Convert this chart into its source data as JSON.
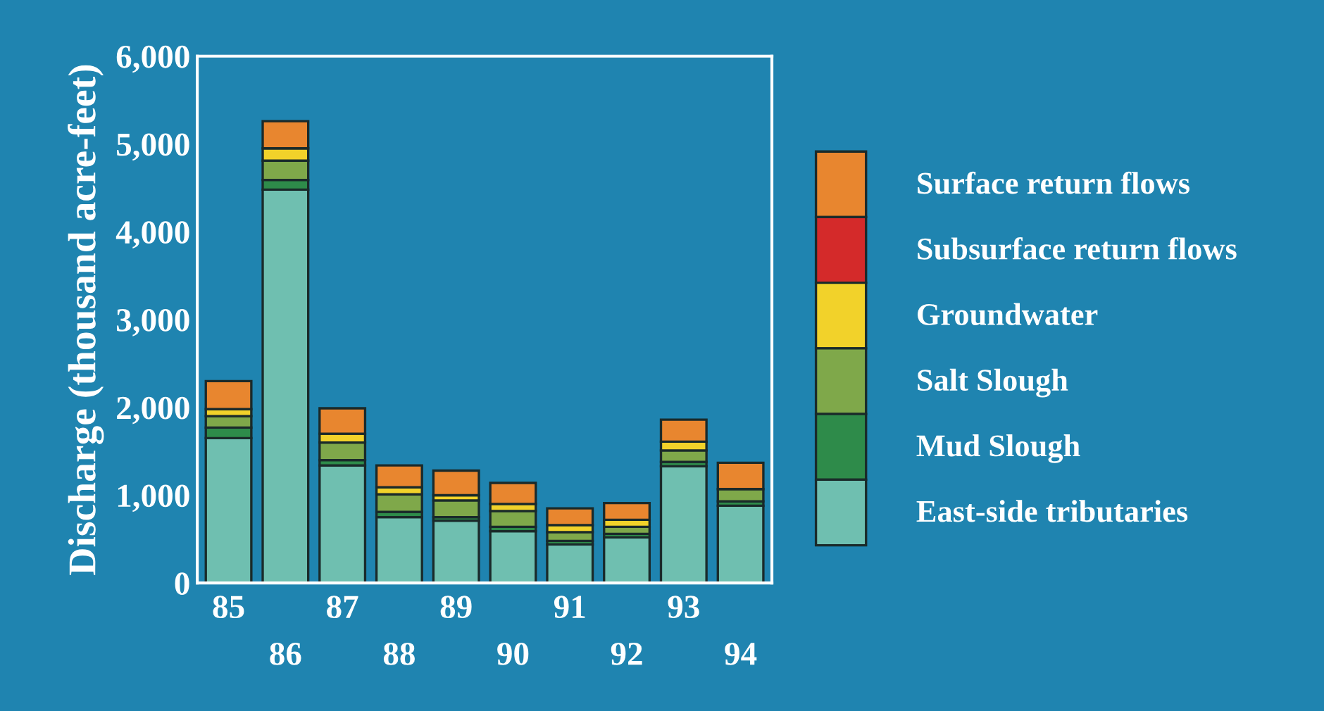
{
  "chart_data": {
    "type": "bar",
    "stacked": true,
    "ylabel": "Discharge (thousand acre-feet)",
    "categories": [
      "85",
      "86",
      "87",
      "88",
      "89",
      "90",
      "91",
      "92",
      "93",
      "94"
    ],
    "series": [
      {
        "name": "East-side tributaries",
        "color": "#6fbfb0",
        "values": [
          1650,
          4480,
          1340,
          750,
          710,
          590,
          440,
          520,
          1330,
          880
        ]
      },
      {
        "name": "Mud Slough",
        "color": "#2e8b4a",
        "values": [
          120,
          110,
          60,
          60,
          40,
          50,
          40,
          40,
          50,
          50
        ]
      },
      {
        "name": "Salt Slough",
        "color": "#7fa84a",
        "values": [
          130,
          220,
          200,
          200,
          190,
          180,
          100,
          80,
          130,
          140
        ]
      },
      {
        "name": "Groundwater",
        "color": "#f2d22a",
        "values": [
          80,
          140,
          100,
          80,
          60,
          80,
          80,
          80,
          100,
          null
        ]
      },
      {
        "name": "Subsurface return flows",
        "color": "#d42a2a",
        "values": [
          null,
          null,
          null,
          null,
          null,
          null,
          null,
          null,
          null,
          null
        ]
      },
      {
        "name": "Surface return flows",
        "color": "#e8862f",
        "values": [
          320,
          310,
          290,
          250,
          280,
          240,
          190,
          190,
          250,
          300
        ]
      }
    ],
    "ylim": [
      0,
      6000
    ],
    "yticks": [
      {
        "value": 0,
        "label": "0"
      },
      {
        "value": 1000,
        "label": "1,000"
      },
      {
        "value": 2000,
        "label": "2,000"
      },
      {
        "value": 3000,
        "label": "3,000"
      },
      {
        "value": 4000,
        "label": "4,000"
      },
      {
        "value": 5000,
        "label": "5,000"
      },
      {
        "value": 6000,
        "label": "6,000"
      }
    ],
    "legend": "right",
    "grid": false
  }
}
